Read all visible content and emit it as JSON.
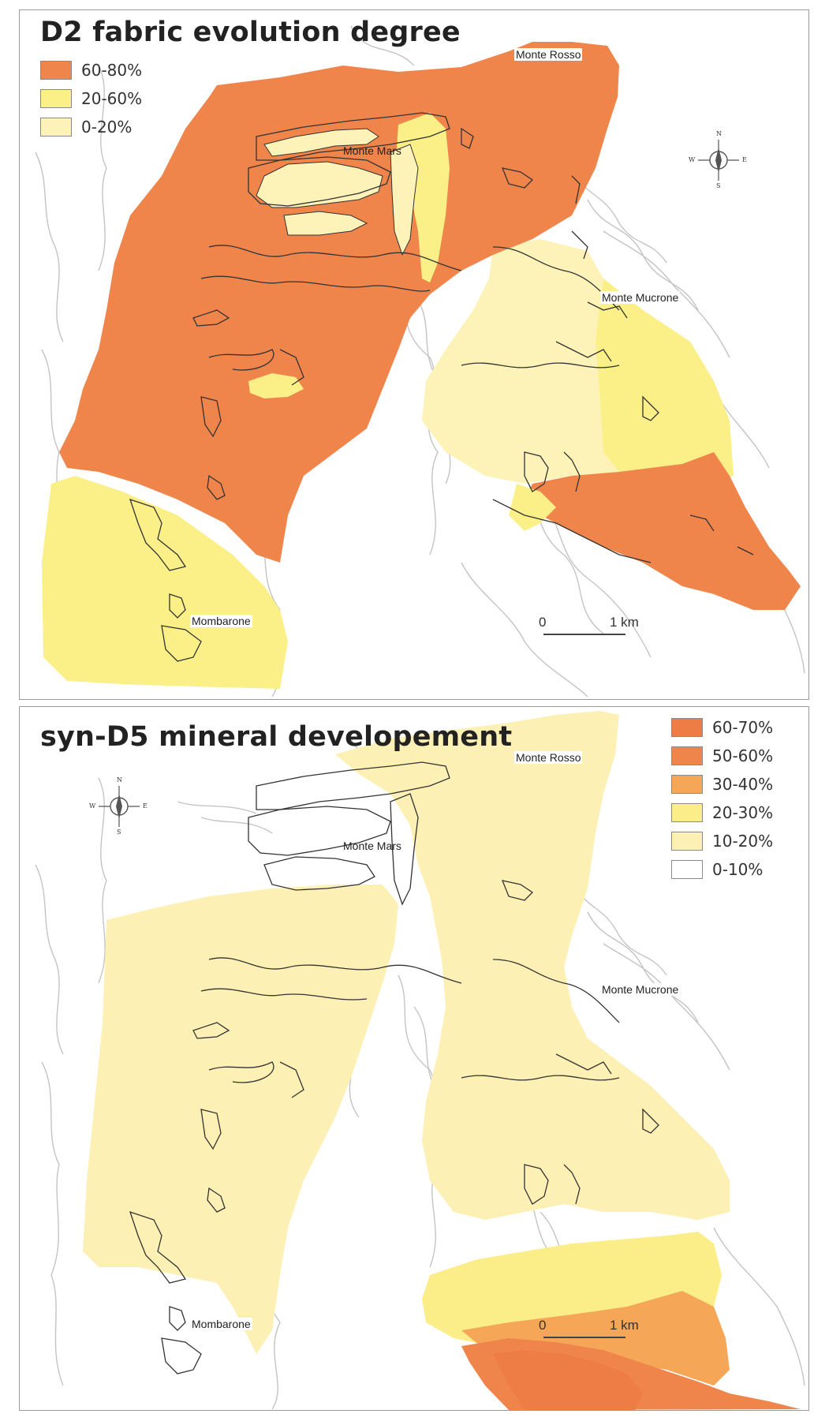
{
  "maps": [
    {
      "title": "D2 fabric evolution degree",
      "legend": [
        {
          "label": "60-80%",
          "color": "#f0854c"
        },
        {
          "label": "20-60%",
          "color": "#fbef88"
        },
        {
          "label": "0-20%",
          "color": "#fdf2b8"
        }
      ],
      "places": {
        "monte_rosso": "Monte Rosso",
        "monte_mars": "Monte Mars",
        "monte_mucrone": "Monte Mucrone",
        "mombarone": "Mombarone"
      },
      "compass": {
        "n": "N",
        "s": "S",
        "e": "E",
        "w": "W",
        "icon": "north-arrow-icon"
      },
      "scale": {
        "zero": "0",
        "one": "1 km"
      }
    },
    {
      "title": "syn-D5 mineral developement",
      "legend": [
        {
          "label": "60-70%",
          "color": "#ed7d44"
        },
        {
          "label": "50-60%",
          "color": "#f0854c"
        },
        {
          "label": "30-40%",
          "color": "#f6a657"
        },
        {
          "label": "20-30%",
          "color": "#fbed88"
        },
        {
          "label": "10-20%",
          "color": "#fdf0b4"
        },
        {
          "label": "0-10%",
          "color": "#ffffff"
        }
      ],
      "places": {
        "monte_rosso": "Monte Rosso",
        "monte_mars": "Monte Mars",
        "monte_mucrone": "Monte Mucrone",
        "mombarone": "Mombarone"
      },
      "compass": {
        "n": "N",
        "s": "S",
        "e": "E",
        "w": "W",
        "icon": "north-arrow-icon"
      },
      "scale": {
        "zero": "0",
        "one": "1 km"
      }
    }
  ],
  "colors": {
    "orange": "#f0854c",
    "dark_orange": "#ed7d44",
    "light_orange": "#f6a657",
    "yellow": "#fbef88",
    "pale_yellow": "#fdf2b8",
    "contour": "#c4c4c4",
    "outline": "#333333"
  }
}
